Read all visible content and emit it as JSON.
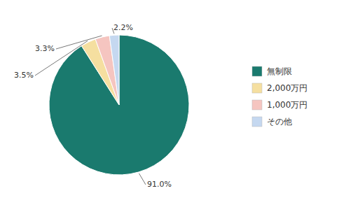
{
  "chart_data": {
    "type": "pie",
    "categories": [
      "無制限",
      "2,000万円",
      "1,000万円",
      "その他"
    ],
    "values": [
      91.0,
      3.5,
      3.3,
      2.2
    ],
    "value_labels": [
      "91.0%",
      "3.5%",
      "3.3%",
      "2.2%"
    ],
    "colors": [
      "#1a7a6e",
      "#f5dfa0",
      "#f5c5c0",
      "#c5d8f0"
    ],
    "data_labels": true,
    "legend": "right"
  }
}
